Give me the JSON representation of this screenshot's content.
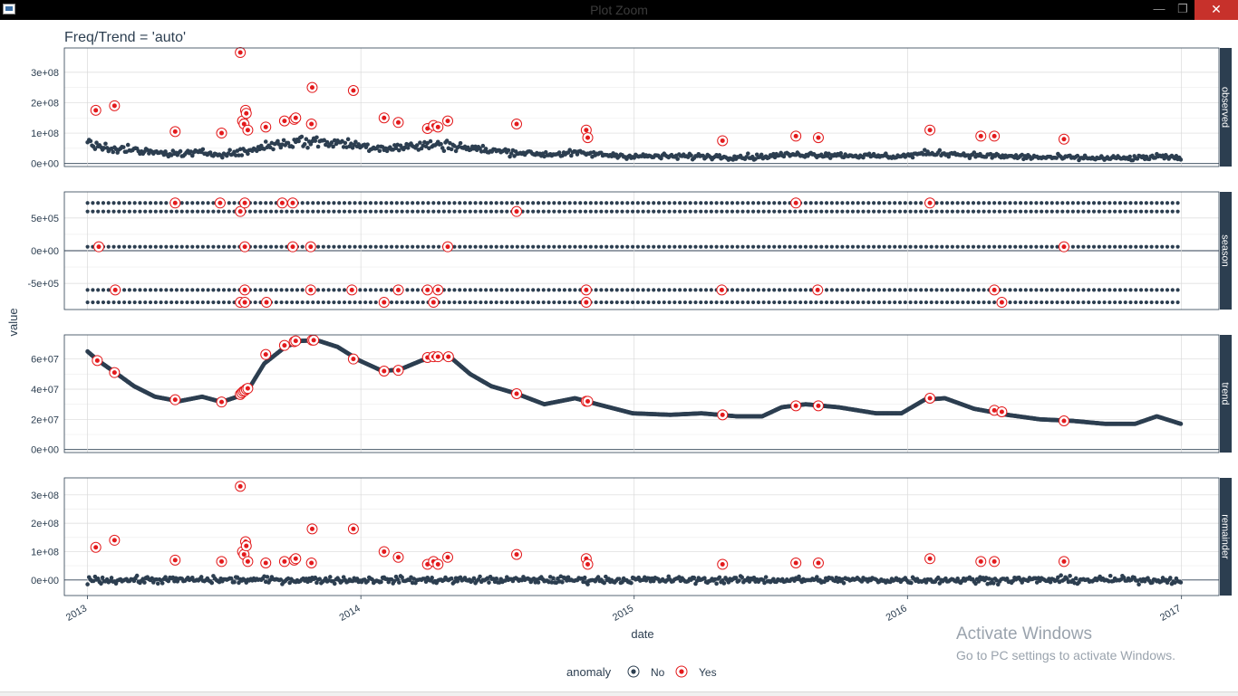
{
  "window": {
    "title": "Plot Zoom",
    "min_glyph": "—",
    "max_glyph": "❐",
    "close_glyph": "✕"
  },
  "watermark": {
    "line1": "Activate Windows",
    "line2": "Go to PC settings to activate Windows."
  },
  "colors": {
    "normal": "#2c3e50",
    "anomaly": "#e31a1c",
    "strip": "#2c3e50",
    "grid": "#d9d9d9",
    "text": "#2c3e50"
  },
  "chart_data": {
    "type": "scatter",
    "title": "Freq/Trend = 'auto'",
    "xlabel": "date",
    "ylabel": "value",
    "xlim": [
      "2012-12-01",
      "2017-02-20"
    ],
    "x_ticks": [
      "2013",
      "2014",
      "2015",
      "2016",
      "2017"
    ],
    "legend": {
      "title": "anomaly",
      "position": "bottom",
      "entries": [
        "No",
        "Yes"
      ]
    },
    "date_range": [
      "2013-01-01",
      "2016-12-31"
    ],
    "panels": [
      {
        "name": "observed",
        "ylim": [
          -10000000,
          380000000
        ],
        "y_ticks": [
          0,
          100000000,
          200000000,
          300000000
        ],
        "y_tick_labels": [
          "0e+00",
          "1e+08",
          "2e+08",
          "3e+08"
        ],
        "anomalies": [
          {
            "x": "2013-01-12",
            "y": 175000000
          },
          {
            "x": "2013-02-06",
            "y": 190000000
          },
          {
            "x": "2013-04-28",
            "y": 105000000
          },
          {
            "x": "2013-06-29",
            "y": 100000000
          },
          {
            "x": "2013-07-24",
            "y": 365000000
          },
          {
            "x": "2013-07-27",
            "y": 140000000
          },
          {
            "x": "2013-07-29",
            "y": 130000000
          },
          {
            "x": "2013-07-31",
            "y": 175000000
          },
          {
            "x": "2013-08-01",
            "y": 165000000
          },
          {
            "x": "2013-08-03",
            "y": 110000000
          },
          {
            "x": "2013-08-27",
            "y": 120000000
          },
          {
            "x": "2013-09-21",
            "y": 140000000
          },
          {
            "x": "2013-10-04",
            "y": 145000000
          },
          {
            "x": "2013-10-06",
            "y": 150000000
          },
          {
            "x": "2013-10-27",
            "y": 130000000
          },
          {
            "x": "2013-10-28",
            "y": 250000000
          },
          {
            "x": "2013-12-22",
            "y": 240000000
          },
          {
            "x": "2014-02-01",
            "y": 150000000
          },
          {
            "x": "2014-02-20",
            "y": 135000000
          },
          {
            "x": "2014-03-31",
            "y": 115000000
          },
          {
            "x": "2014-04-08",
            "y": 125000000
          },
          {
            "x": "2014-04-14",
            "y": 120000000
          },
          {
            "x": "2014-04-27",
            "y": 140000000
          },
          {
            "x": "2014-07-28",
            "y": 130000000
          },
          {
            "x": "2014-10-29",
            "y": 110000000
          },
          {
            "x": "2014-10-31",
            "y": 85000000
          },
          {
            "x": "2015-04-29",
            "y": 75000000
          },
          {
            "x": "2015-08-05",
            "y": 90000000
          },
          {
            "x": "2015-09-04",
            "y": 85000000
          },
          {
            "x": "2016-01-31",
            "y": 110000000
          },
          {
            "x": "2016-04-08",
            "y": 90000000
          },
          {
            "x": "2016-04-26",
            "y": 90000000
          },
          {
            "x": "2016-07-28",
            "y": 80000000
          }
        ]
      },
      {
        "name": "season",
        "ylim": [
          -900000,
          900000
        ],
        "y_ticks": [
          -500000,
          0,
          500000
        ],
        "y_tick_labels": [
          "-5e+05",
          "0e+00",
          "5e+05"
        ],
        "levels": [
          730000,
          600000,
          60000,
          -600000,
          -790000
        ],
        "anomalies": [
          {
            "x": "2013-01-16",
            "y": 60000
          },
          {
            "x": "2013-02-07",
            "y": -600000
          },
          {
            "x": "2013-04-28",
            "y": 730000
          },
          {
            "x": "2013-06-27",
            "y": 730000
          },
          {
            "x": "2013-07-24",
            "y": 600000
          },
          {
            "x": "2013-07-24",
            "y": -790000
          },
          {
            "x": "2013-07-30",
            "y": 60000
          },
          {
            "x": "2013-07-30",
            "y": 730000
          },
          {
            "x": "2013-07-30",
            "y": -600000
          },
          {
            "x": "2013-07-30",
            "y": -790000
          },
          {
            "x": "2013-08-28",
            "y": -790000
          },
          {
            "x": "2013-09-18",
            "y": 730000
          },
          {
            "x": "2013-10-02",
            "y": 730000
          },
          {
            "x": "2013-10-02",
            "y": 60000
          },
          {
            "x": "2013-10-26",
            "y": 60000
          },
          {
            "x": "2013-10-26",
            "y": -600000
          },
          {
            "x": "2013-12-20",
            "y": -600000
          },
          {
            "x": "2014-02-01",
            "y": -790000
          },
          {
            "x": "2014-02-20",
            "y": -600000
          },
          {
            "x": "2014-03-31",
            "y": -600000
          },
          {
            "x": "2014-04-08",
            "y": -790000
          },
          {
            "x": "2014-04-14",
            "y": -600000
          },
          {
            "x": "2014-04-27",
            "y": 60000
          },
          {
            "x": "2014-07-28",
            "y": 600000
          },
          {
            "x": "2014-10-29",
            "y": -600000
          },
          {
            "x": "2014-10-29",
            "y": -790000
          },
          {
            "x": "2015-04-28",
            "y": -600000
          },
          {
            "x": "2015-08-05",
            "y": 730000
          },
          {
            "x": "2015-09-03",
            "y": -600000
          },
          {
            "x": "2016-01-31",
            "y": 730000
          },
          {
            "x": "2016-04-26",
            "y": -600000
          },
          {
            "x": "2016-05-06",
            "y": -790000
          },
          {
            "x": "2016-07-28",
            "y": 60000
          }
        ]
      },
      {
        "name": "trend",
        "ylim": [
          -2000000,
          76000000
        ],
        "y_ticks": [
          0,
          20000000,
          40000000,
          60000000
        ],
        "y_tick_labels": [
          "0e+00",
          "2e+07",
          "4e+07",
          "6e+07"
        ],
        "curve": [
          {
            "x": "2013-01-01",
            "y": 65000000
          },
          {
            "x": "2013-01-15",
            "y": 59000000
          },
          {
            "x": "2013-02-07",
            "y": 51000000
          },
          {
            "x": "2013-03-04",
            "y": 42000000
          },
          {
            "x": "2013-04-01",
            "y": 35000000
          },
          {
            "x": "2013-05-03",
            "y": 32000000
          },
          {
            "x": "2013-06-03",
            "y": 35000000
          },
          {
            "x": "2013-06-29",
            "y": 31500000
          },
          {
            "x": "2013-07-20",
            "y": 35000000
          },
          {
            "x": "2013-08-04",
            "y": 40000000
          },
          {
            "x": "2013-08-25",
            "y": 57000000
          },
          {
            "x": "2013-09-22",
            "y": 68000000
          },
          {
            "x": "2013-10-13",
            "y": 72000000
          },
          {
            "x": "2013-11-03",
            "y": 72500000
          },
          {
            "x": "2013-12-01",
            "y": 68000000
          },
          {
            "x": "2013-12-30",
            "y": 59000000
          },
          {
            "x": "2014-01-30",
            "y": 52000000
          },
          {
            "x": "2014-02-22",
            "y": 53000000
          },
          {
            "x": "2014-03-23",
            "y": 59000000
          },
          {
            "x": "2014-04-08",
            "y": 61000000
          },
          {
            "x": "2014-05-01",
            "y": 61000000
          },
          {
            "x": "2014-05-27",
            "y": 50000000
          },
          {
            "x": "2014-06-24",
            "y": 42000000
          },
          {
            "x": "2014-07-28",
            "y": 37000000
          },
          {
            "x": "2014-09-03",
            "y": 30000000
          },
          {
            "x": "2014-10-14",
            "y": 34000000
          },
          {
            "x": "2014-11-13",
            "y": 30000000
          },
          {
            "x": "2014-12-30",
            "y": 24000000
          },
          {
            "x": "2015-02-18",
            "y": 23000000
          },
          {
            "x": "2015-04-01",
            "y": 24000000
          },
          {
            "x": "2015-05-18",
            "y": 22000000
          },
          {
            "x": "2015-06-21",
            "y": 22000000
          },
          {
            "x": "2015-07-17",
            "y": 28000000
          },
          {
            "x": "2015-08-18",
            "y": 30000000
          },
          {
            "x": "2015-10-01",
            "y": 28000000
          },
          {
            "x": "2015-11-20",
            "y": 24000000
          },
          {
            "x": "2015-12-24",
            "y": 24000000
          },
          {
            "x": "2016-01-24",
            "y": 33000000
          },
          {
            "x": "2016-02-20",
            "y": 34000000
          },
          {
            "x": "2016-03-30",
            "y": 27000000
          },
          {
            "x": "2016-05-13",
            "y": 23000000
          },
          {
            "x": "2016-06-26",
            "y": 20000000
          },
          {
            "x": "2016-08-08",
            "y": 19000000
          },
          {
            "x": "2016-09-21",
            "y": 17000000
          },
          {
            "x": "2016-10-31",
            "y": 17000000
          },
          {
            "x": "2016-11-29",
            "y": 22000000
          },
          {
            "x": "2016-12-31",
            "y": 17000000
          }
        ],
        "anomalies": [
          {
            "x": "2013-01-14",
            "y": 59000000
          },
          {
            "x": "2013-02-06",
            "y": 51000000
          },
          {
            "x": "2013-04-28",
            "y": 33000000
          },
          {
            "x": "2013-06-29",
            "y": 31500000
          },
          {
            "x": "2013-07-24",
            "y": 36500000
          },
          {
            "x": "2013-07-26",
            "y": 37500000
          },
          {
            "x": "2013-07-28",
            "y": 38500000
          },
          {
            "x": "2013-07-30",
            "y": 39000000
          },
          {
            "x": "2013-08-01",
            "y": 40000000
          },
          {
            "x": "2013-08-03",
            "y": 40500000
          },
          {
            "x": "2013-08-27",
            "y": 63000000
          },
          {
            "x": "2013-09-21",
            "y": 69000000
          },
          {
            "x": "2013-10-04",
            "y": 71500000
          },
          {
            "x": "2013-10-06",
            "y": 72000000
          },
          {
            "x": "2013-10-28",
            "y": 72500000
          },
          {
            "x": "2013-10-30",
            "y": 72500000
          },
          {
            "x": "2013-12-22",
            "y": 60000000
          },
          {
            "x": "2014-02-01",
            "y": 52000000
          },
          {
            "x": "2014-02-20",
            "y": 52500000
          },
          {
            "x": "2014-03-31",
            "y": 61000000
          },
          {
            "x": "2014-04-08",
            "y": 61500000
          },
          {
            "x": "2014-04-14",
            "y": 61500000
          },
          {
            "x": "2014-04-28",
            "y": 61500000
          },
          {
            "x": "2014-07-28",
            "y": 37000000
          },
          {
            "x": "2014-10-29",
            "y": 32000000
          },
          {
            "x": "2014-10-31",
            "y": 32000000
          },
          {
            "x": "2015-04-29",
            "y": 23000000
          },
          {
            "x": "2015-08-05",
            "y": 29000000
          },
          {
            "x": "2015-09-04",
            "y": 29000000
          },
          {
            "x": "2016-01-31",
            "y": 34000000
          },
          {
            "x": "2016-04-26",
            "y": 26000000
          },
          {
            "x": "2016-05-06",
            "y": 25000000
          },
          {
            "x": "2016-07-28",
            "y": 19000000
          }
        ]
      },
      {
        "name": "remainder",
        "ylim": [
          -55000000,
          360000000
        ],
        "y_ticks": [
          0,
          100000000,
          200000000,
          300000000
        ],
        "y_tick_labels": [
          "0e+00",
          "1e+08",
          "2e+08",
          "3e+08"
        ],
        "anomalies": [
          {
            "x": "2013-01-12",
            "y": 115000000
          },
          {
            "x": "2013-02-06",
            "y": 140000000
          },
          {
            "x": "2013-04-28",
            "y": 70000000
          },
          {
            "x": "2013-06-29",
            "y": 65000000
          },
          {
            "x": "2013-07-24",
            "y": 330000000
          },
          {
            "x": "2013-07-27",
            "y": 100000000
          },
          {
            "x": "2013-07-29",
            "y": 90000000
          },
          {
            "x": "2013-07-31",
            "y": 135000000
          },
          {
            "x": "2013-08-01",
            "y": 120000000
          },
          {
            "x": "2013-08-03",
            "y": 65000000
          },
          {
            "x": "2013-08-27",
            "y": 60000000
          },
          {
            "x": "2013-09-21",
            "y": 65000000
          },
          {
            "x": "2013-10-04",
            "y": 70000000
          },
          {
            "x": "2013-10-06",
            "y": 75000000
          },
          {
            "x": "2013-10-27",
            "y": 60000000
          },
          {
            "x": "2013-10-28",
            "y": 180000000
          },
          {
            "x": "2013-12-22",
            "y": 180000000
          },
          {
            "x": "2014-02-01",
            "y": 100000000
          },
          {
            "x": "2014-02-20",
            "y": 80000000
          },
          {
            "x": "2014-03-31",
            "y": 55000000
          },
          {
            "x": "2014-04-08",
            "y": 65000000
          },
          {
            "x": "2014-04-14",
            "y": 55000000
          },
          {
            "x": "2014-04-27",
            "y": 80000000
          },
          {
            "x": "2014-07-28",
            "y": 90000000
          },
          {
            "x": "2014-10-29",
            "y": 75000000
          },
          {
            "x": "2014-10-31",
            "y": 55000000
          },
          {
            "x": "2015-04-29",
            "y": 55000000
          },
          {
            "x": "2015-08-05",
            "y": 60000000
          },
          {
            "x": "2015-09-04",
            "y": 60000000
          },
          {
            "x": "2016-01-31",
            "y": 75000000
          },
          {
            "x": "2016-04-08",
            "y": 65000000
          },
          {
            "x": "2016-04-26",
            "y": 65000000
          },
          {
            "x": "2016-07-28",
            "y": 65000000
          }
        ]
      }
    ]
  }
}
